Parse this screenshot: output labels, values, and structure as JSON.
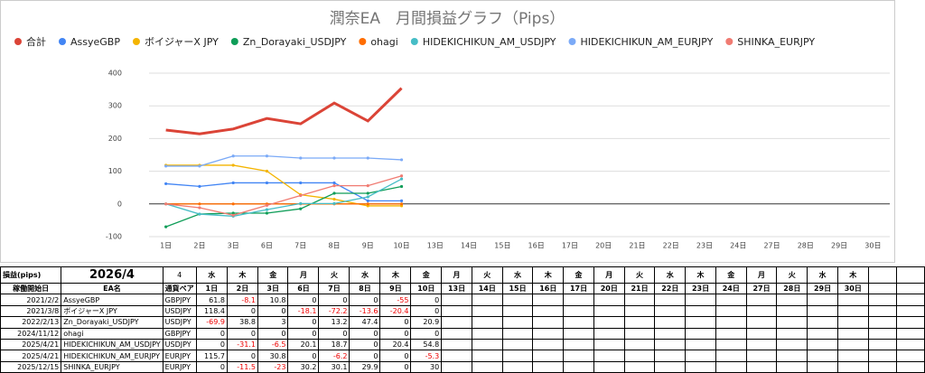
{
  "chart_data": {
    "type": "line",
    "title": "潤奈EA　月間損益グラフ（Pips）",
    "categories": [
      "1日",
      "2日",
      "3日",
      "6日",
      "7日",
      "8日",
      "9日",
      "10日",
      "13日",
      "14日",
      "15日",
      "16日",
      "17日",
      "20日",
      "21日",
      "22日",
      "23日",
      "24日",
      "27日",
      "28日",
      "29日",
      "30日"
    ],
    "series": [
      {
        "name": "合計",
        "color": "#db4437",
        "values": [
          226,
          214.1,
          229.2,
          261.4,
          245,
          308.7,
          253.7,
          354.1,
          null,
          null,
          null,
          null,
          null,
          null,
          null,
          null,
          null,
          null,
          null,
          null,
          null,
          null
        ]
      },
      {
        "name": "AssyeGBP",
        "color": "#4285f4",
        "values": [
          61.8,
          53.7,
          64.5,
          64.5,
          64.5,
          64.5,
          9.5,
          9.5,
          null,
          null,
          null,
          null,
          null,
          null,
          null,
          null,
          null,
          null,
          null,
          null,
          null,
          null
        ]
      },
      {
        "name": "ボイジャーX JPY",
        "color": "#f4b400",
        "values": [
          118.4,
          118.4,
          118.4,
          100.3,
          28.1,
          14.5,
          -5.9,
          -5.9,
          null,
          null,
          null,
          null,
          null,
          null,
          null,
          null,
          null,
          null,
          null,
          null,
          null,
          null
        ]
      },
      {
        "name": "Zn_Dorayaki_USDJPY",
        "color": "#0f9d58",
        "values": [
          -69.9,
          -31.1,
          -28.1,
          -28.1,
          -14.9,
          32.5,
          32.5,
          53.4,
          null,
          null,
          null,
          null,
          null,
          null,
          null,
          null,
          null,
          null,
          null,
          null,
          null,
          null
        ]
      },
      {
        "name": "ohagi",
        "color": "#ff6d01",
        "values": [
          0,
          0,
          0,
          0,
          0,
          0,
          0,
          0,
          null,
          null,
          null,
          null,
          null,
          null,
          null,
          null,
          null,
          null,
          null,
          null,
          null,
          null
        ]
      },
      {
        "name": "HIDEKICHIKUN_AM_USDJPY",
        "color": "#46bdc6",
        "values": [
          0,
          -31.1,
          -37.6,
          -17.5,
          1.2,
          1.2,
          21.6,
          76.4,
          null,
          null,
          null,
          null,
          null,
          null,
          null,
          null,
          null,
          null,
          null,
          null,
          null,
          null
        ]
      },
      {
        "name": "HIDEKICHIKUN_AM_EURJPY",
        "color": "#7baaf7",
        "values": [
          115.7,
          115.7,
          146.5,
          146.5,
          140.3,
          140.3,
          140.3,
          135,
          null,
          null,
          null,
          null,
          null,
          null,
          null,
          null,
          null,
          null,
          null,
          null,
          null,
          null
        ]
      },
      {
        "name": "SHINKA_EURJPY",
        "color": "#f07b72",
        "values": [
          0,
          -11.5,
          -34.5,
          -4.3,
          25.8,
          55.7,
          55.7,
          85.7,
          null,
          null,
          null,
          null,
          null,
          null,
          null,
          null,
          null,
          null,
          null,
          null,
          null,
          null
        ]
      }
    ],
    "ylim": [
      -100,
      400
    ],
    "yticks": [
      -100,
      0,
      100,
      200,
      300,
      400
    ],
    "grid": true,
    "legend": "top"
  },
  "table": {
    "header": {
      "label": "損益(pips)",
      "month": "2026/4",
      "select": "4",
      "weekdays": [
        "水",
        "木",
        "金",
        "月",
        "火",
        "水",
        "木",
        "金",
        "月",
        "火",
        "水",
        "木",
        "金",
        "月",
        "火",
        "水",
        "木",
        "金",
        "月",
        "火",
        "水",
        "木"
      ]
    },
    "columns": [
      "稼働開始日",
      "EA名",
      "通貨ペア"
    ],
    "days": [
      "1日",
      "2日",
      "3日",
      "6日",
      "7日",
      "8日",
      "9日",
      "10日",
      "13日",
      "14日",
      "15日",
      "16日",
      "17日",
      "20日",
      "21日",
      "22日",
      "23日",
      "24日",
      "27日",
      "28日",
      "29日",
      "30日"
    ],
    "rows": [
      {
        "start": "2021/2/2",
        "name": "AssyeGBP",
        "pair": "GBPJPY",
        "values": [
          61.8,
          -8.1,
          10.8,
          0,
          0,
          0,
          -55,
          0
        ]
      },
      {
        "start": "2021/3/8",
        "name": "ボイジャーX JPY",
        "pair": "USDJPY",
        "values": [
          118.4,
          0,
          0,
          -18.1,
          -72.2,
          -13.6,
          -20.4,
          0
        ]
      },
      {
        "start": "2022/2/13",
        "name": "Zn_Dorayaki_USDJPY",
        "pair": "USDJPY",
        "values": [
          -69.9,
          38.8,
          3,
          0,
          13.2,
          47.4,
          0,
          20.9
        ]
      },
      {
        "start": "2024/11/12",
        "name": "ohagi",
        "pair": "GBPJPY",
        "values": [
          0,
          0,
          0,
          0,
          0,
          0,
          0,
          0
        ]
      },
      {
        "start": "2025/4/21",
        "name": "HIDEKICHIKUN_AM_USDJPY",
        "pair": "USDJPY",
        "values": [
          0,
          -31.1,
          -6.5,
          20.1,
          18.7,
          0,
          20.4,
          54.8
        ]
      },
      {
        "start": "2025/4/21",
        "name": "HIDEKICHIKUN_AM_EURJPY",
        "pair": "EURJPY",
        "values": [
          115.7,
          0,
          30.8,
          0,
          -6.2,
          0,
          0,
          -5.3
        ]
      },
      {
        "start": "2025/12/15",
        "name": "SHINKA_EURJPY",
        "pair": "EURJPY",
        "values": [
          0,
          -11.5,
          -23,
          30.2,
          30.1,
          29.9,
          0,
          30
        ]
      }
    ]
  }
}
